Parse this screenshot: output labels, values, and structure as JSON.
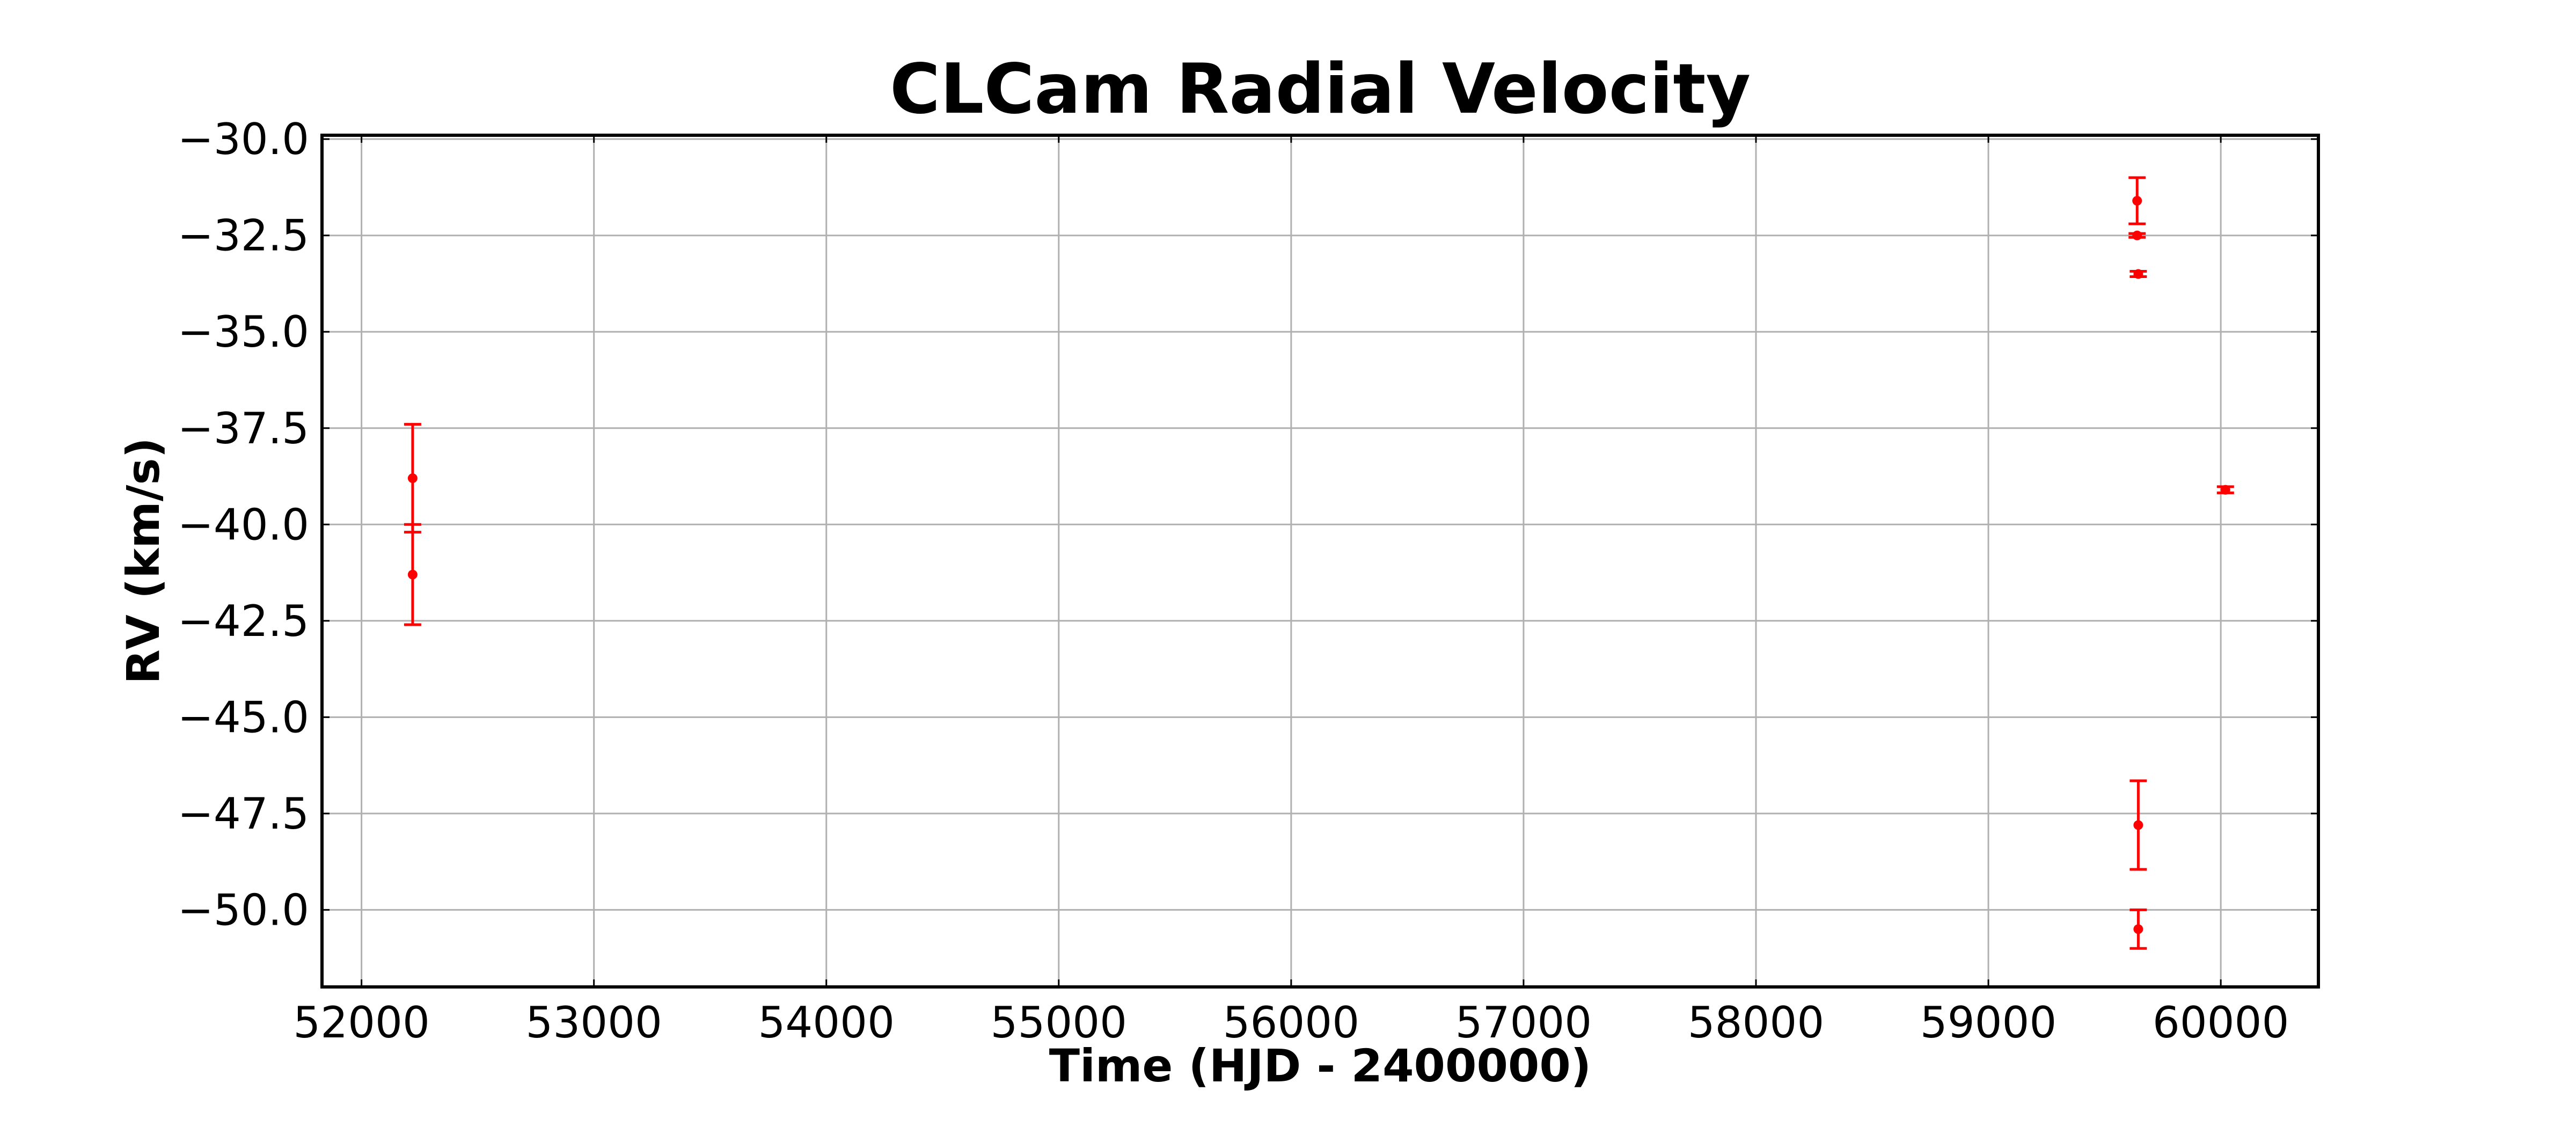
{
  "chart_data": {
    "type": "scatter",
    "title": "CLCam Radial Velocity",
    "xlabel": "Time (HJD - 2400000)",
    "ylabel": "RV (km/s)",
    "xlim": [
      51830,
      60420
    ],
    "ylim": [
      -52.0,
      -29.9
    ],
    "x_ticks": [
      52000,
      53000,
      54000,
      55000,
      56000,
      57000,
      58000,
      59000,
      60000
    ],
    "y_ticks": [
      -30.0,
      -32.5,
      -35.0,
      -37.5,
      -40.0,
      -42.5,
      -45.0,
      -47.5,
      -50.0
    ],
    "x_tick_labels": [
      "52000",
      "53000",
      "54000",
      "55000",
      "56000",
      "57000",
      "58000",
      "59000",
      "60000"
    ],
    "y_tick_labels": [
      "−30.0",
      "−32.5",
      "−35.0",
      "−37.5",
      "−40.0",
      "−42.5",
      "−45.0",
      "−47.5",
      "−50.0"
    ],
    "grid": true,
    "marker_color": "#ff0000",
    "series": [
      {
        "points": [
          {
            "x": 52220,
            "y": -38.8,
            "err": 1.4
          },
          {
            "x": 52220,
            "y": -41.3,
            "err": 1.3
          },
          {
            "x": 59640,
            "y": -31.6,
            "err": 0.6
          },
          {
            "x": 59640,
            "y": -32.5,
            "err": 0.05
          },
          {
            "x": 59645,
            "y": -33.5,
            "err": 0.07
          },
          {
            "x": 59645,
            "y": -47.8,
            "err": 1.15
          },
          {
            "x": 59645,
            "y": -50.5,
            "err": 0.5
          },
          {
            "x": 60020,
            "y": -39.1,
            "err": 0.08
          }
        ]
      }
    ]
  }
}
